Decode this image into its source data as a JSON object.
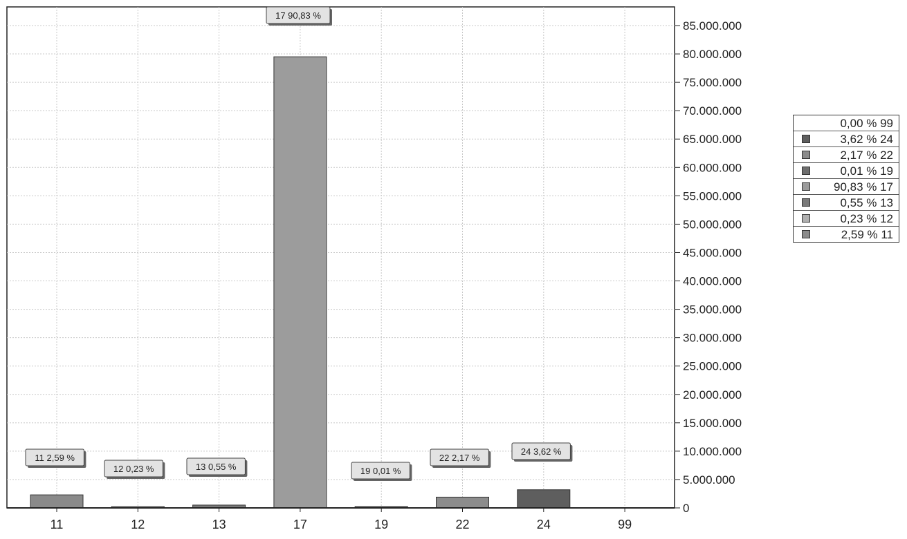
{
  "chart_data": {
    "type": "bar",
    "title": "",
    "xlabel": "",
    "ylabel": "",
    "categories": [
      "11",
      "12",
      "13",
      "17",
      "19",
      "22",
      "24",
      "99"
    ],
    "values": [
      2300000,
      200000,
      500000,
      79500000,
      10000,
      1900000,
      3200000,
      0
    ],
    "ylim": [
      0,
      85000000
    ],
    "yticks": [
      0,
      5000000,
      10000000,
      15000000,
      20000000,
      25000000,
      30000000,
      35000000,
      40000000,
      45000000,
      50000000,
      55000000,
      60000000,
      65000000,
      70000000,
      75000000,
      80000000,
      85000000
    ],
    "ytick_labels": [
      "0",
      "5.000.000",
      "10.000.000",
      "15.000.000",
      "20.000.000",
      "25.000.000",
      "30.000.000",
      "35.000.000",
      "40.000.000",
      "45.000.000",
      "50.000.000",
      "55.000.000",
      "60.000.000",
      "65.000.000",
      "70.000.000",
      "75.000.000",
      "80.000.000",
      "85.000.000"
    ],
    "data_labels": [
      "11 2,59 %",
      "12 0,23 %",
      "13 0,55 %",
      "17 90,83 %",
      "19 0,01 %",
      "22 2,17 %",
      "24 3,62 %",
      ""
    ],
    "bar_colors": [
      "#8a8a8a",
      "#b0b0b0",
      "#7a7a7a",
      "#9c9c9c",
      "#6e6e6e",
      "#8c8c8c",
      "#5e5e5e",
      "#ffffff"
    ],
    "grid": true,
    "axis_position": "right",
    "legend": {
      "position": "right",
      "items": [
        {
          "label": "0,00 % 99",
          "color": "#ffffff"
        },
        {
          "label": "3,62 % 24",
          "color": "#5e5e5e"
        },
        {
          "label": "2,17 % 22",
          "color": "#8c8c8c"
        },
        {
          "label": "0,01 % 19",
          "color": "#6e6e6e"
        },
        {
          "label": "90,83 % 17",
          "color": "#9c9c9c"
        },
        {
          "label": "0,55 % 13",
          "color": "#7a7a7a"
        },
        {
          "label": "0,23 % 12",
          "color": "#b0b0b0"
        },
        {
          "label": "2,59 % 11",
          "color": "#8a8a8a"
        }
      ]
    }
  }
}
